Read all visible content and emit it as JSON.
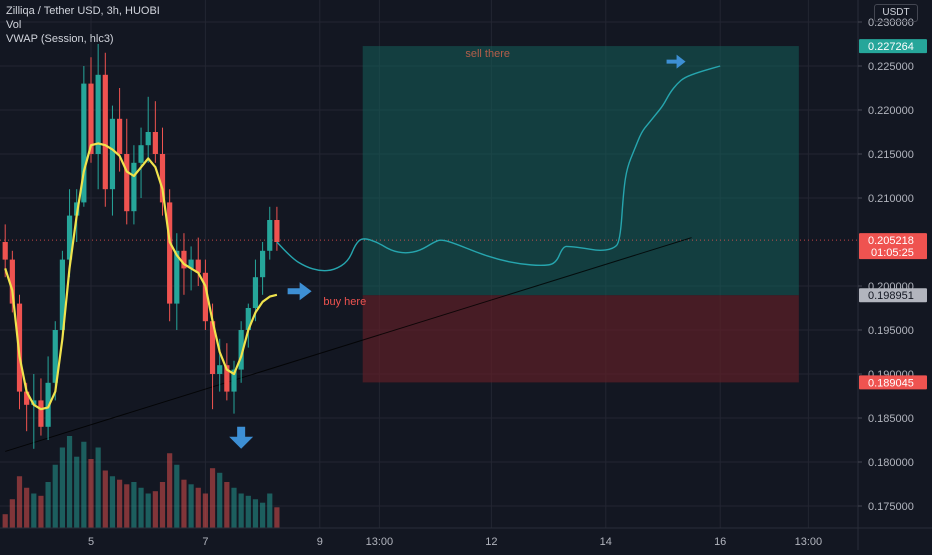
{
  "chart_data": {
    "type": "candlestick",
    "title": "Zilliqa / Tether USD, 3h, HUOBI",
    "indicators": [
      "Vol",
      "VWAP (Session, hlc3)"
    ],
    "currency": "USDT",
    "ylim": [
      0.1725,
      0.2325
    ],
    "y_ticks": [
      "0.230000",
      "0.225000",
      "0.220000",
      "0.215000",
      "0.210000",
      "0.200000",
      "0.195000",
      "0.190000",
      "0.185000",
      "0.180000",
      "0.175000"
    ],
    "x_ticks": [
      {
        "label": "5",
        "t": 0
      },
      {
        "label": "7",
        "t": 16
      },
      {
        "label": "9",
        "t": 32
      },
      {
        "label": "13:00",
        "t": 40.33
      },
      {
        "label": "12",
        "t": 56
      },
      {
        "label": "14",
        "t": 72
      },
      {
        "label": "16",
        "t": 88
      },
      {
        "label": "13:00",
        "t": 100.33
      }
    ],
    "candles": [
      {
        "t": -12,
        "o": 0.205,
        "h": 0.207,
        "l": 0.201,
        "c": 0.203
      },
      {
        "t": -11,
        "o": 0.203,
        "h": 0.204,
        "l": 0.197,
        "c": 0.198
      },
      {
        "t": -10,
        "o": 0.198,
        "h": 0.199,
        "l": 0.186,
        "c": 0.188
      },
      {
        "t": -9,
        "o": 0.188,
        "h": 0.189,
        "l": 0.1835,
        "c": 0.1865
      },
      {
        "t": -8,
        "o": 0.1865,
        "h": 0.19,
        "l": 0.1815,
        "c": 0.187
      },
      {
        "t": -7,
        "o": 0.187,
        "h": 0.1895,
        "l": 0.183,
        "c": 0.184
      },
      {
        "t": -6,
        "o": 0.184,
        "h": 0.192,
        "l": 0.1825,
        "c": 0.189
      },
      {
        "t": -5,
        "o": 0.189,
        "h": 0.196,
        "l": 0.187,
        "c": 0.195
      },
      {
        "t": -4,
        "o": 0.195,
        "h": 0.204,
        "l": 0.194,
        "c": 0.203
      },
      {
        "t": -3,
        "o": 0.203,
        "h": 0.211,
        "l": 0.201,
        "c": 0.208
      },
      {
        "t": -2,
        "o": 0.208,
        "h": 0.211,
        "l": 0.205,
        "c": 0.2095
      },
      {
        "t": -1,
        "o": 0.2095,
        "h": 0.225,
        "l": 0.209,
        "c": 0.223
      },
      {
        "t": 0,
        "o": 0.223,
        "h": 0.226,
        "l": 0.214,
        "c": 0.215
      },
      {
        "t": 1,
        "o": 0.215,
        "h": 0.2275,
        "l": 0.211,
        "c": 0.224
      },
      {
        "t": 2,
        "o": 0.224,
        "h": 0.2265,
        "l": 0.209,
        "c": 0.211
      },
      {
        "t": 3,
        "o": 0.211,
        "h": 0.2205,
        "l": 0.208,
        "c": 0.219
      },
      {
        "t": 4,
        "o": 0.219,
        "h": 0.2225,
        "l": 0.213,
        "c": 0.215
      },
      {
        "t": 5,
        "o": 0.215,
        "h": 0.219,
        "l": 0.207,
        "c": 0.2085
      },
      {
        "t": 6,
        "o": 0.2085,
        "h": 0.216,
        "l": 0.207,
        "c": 0.214
      },
      {
        "t": 7,
        "o": 0.214,
        "h": 0.218,
        "l": 0.21,
        "c": 0.216
      },
      {
        "t": 8,
        "o": 0.216,
        "h": 0.2215,
        "l": 0.214,
        "c": 0.2175
      },
      {
        "t": 9,
        "o": 0.2175,
        "h": 0.221,
        "l": 0.214,
        "c": 0.215
      },
      {
        "t": 10,
        "o": 0.215,
        "h": 0.218,
        "l": 0.208,
        "c": 0.2095
      },
      {
        "t": 11,
        "o": 0.2095,
        "h": 0.211,
        "l": 0.196,
        "c": 0.198
      },
      {
        "t": 12,
        "o": 0.198,
        "h": 0.206,
        "l": 0.195,
        "c": 0.204
      },
      {
        "t": 13,
        "o": 0.204,
        "h": 0.206,
        "l": 0.199,
        "c": 0.202
      },
      {
        "t": 14,
        "o": 0.202,
        "h": 0.2045,
        "l": 0.1995,
        "c": 0.203
      },
      {
        "t": 15,
        "o": 0.203,
        "h": 0.2055,
        "l": 0.2,
        "c": 0.2015
      },
      {
        "t": 16,
        "o": 0.2015,
        "h": 0.203,
        "l": 0.195,
        "c": 0.196
      },
      {
        "t": 17,
        "o": 0.196,
        "h": 0.198,
        "l": 0.186,
        "c": 0.19
      },
      {
        "t": 18,
        "o": 0.19,
        "h": 0.194,
        "l": 0.188,
        "c": 0.191
      },
      {
        "t": 19,
        "o": 0.191,
        "h": 0.1935,
        "l": 0.187,
        "c": 0.188
      },
      {
        "t": 20,
        "o": 0.188,
        "h": 0.1915,
        "l": 0.1855,
        "c": 0.1905
      },
      {
        "t": 21,
        "o": 0.1905,
        "h": 0.196,
        "l": 0.189,
        "c": 0.195
      },
      {
        "t": 22,
        "o": 0.195,
        "h": 0.198,
        "l": 0.193,
        "c": 0.1975
      },
      {
        "t": 23,
        "o": 0.1975,
        "h": 0.203,
        "l": 0.196,
        "c": 0.201
      },
      {
        "t": 24,
        "o": 0.201,
        "h": 0.205,
        "l": 0.199,
        "c": 0.204
      },
      {
        "t": 25,
        "o": 0.204,
        "h": 0.209,
        "l": 0.203,
        "c": 0.2075
      },
      {
        "t": 26,
        "o": 0.2075,
        "h": 0.209,
        "l": 0.204,
        "c": 0.205
      }
    ],
    "volume": {
      "note": "relative volume per candle, 0-1",
      "values": [
        0.12,
        0.25,
        0.45,
        0.35,
        0.3,
        0.28,
        0.4,
        0.55,
        0.7,
        0.8,
        0.62,
        0.75,
        0.6,
        0.7,
        0.5,
        0.45,
        0.42,
        0.38,
        0.4,
        0.35,
        0.3,
        0.32,
        0.4,
        0.65,
        0.55,
        0.42,
        0.38,
        0.35,
        0.3,
        0.52,
        0.48,
        0.4,
        0.35,
        0.3,
        0.28,
        0.25,
        0.22,
        0.3,
        0.18
      ]
    },
    "vwap": [
      {
        "t": -12,
        "v": 0.202
      },
      {
        "t": -11,
        "v": 0.1995
      },
      {
        "t": -10,
        "v": 0.192
      },
      {
        "t": -9,
        "v": 0.188
      },
      {
        "t": -8,
        "v": 0.1865
      },
      {
        "t": -7,
        "v": 0.186
      },
      {
        "t": -6,
        "v": 0.1862
      },
      {
        "t": -5,
        "v": 0.188
      },
      {
        "t": -4,
        "v": 0.194
      },
      {
        "t": -3,
        "v": 0.202
      },
      {
        "t": -2,
        "v": 0.208
      },
      {
        "t": -1,
        "v": 0.213
      },
      {
        "t": 0,
        "v": 0.216
      },
      {
        "t": 1,
        "v": 0.2162
      },
      {
        "t": 2,
        "v": 0.216
      },
      {
        "t": 3,
        "v": 0.2155
      },
      {
        "t": 4,
        "v": 0.2148
      },
      {
        "t": 5,
        "v": 0.213
      },
      {
        "t": 6,
        "v": 0.2125
      },
      {
        "t": 7,
        "v": 0.2135
      },
      {
        "t": 8,
        "v": 0.2145
      },
      {
        "t": 9,
        "v": 0.2135
      },
      {
        "t": 10,
        "v": 0.211
      },
      {
        "t": 11,
        "v": 0.205
      },
      {
        "t": 12,
        "v": 0.2035
      },
      {
        "t": 13,
        "v": 0.2025
      },
      {
        "t": 14,
        "v": 0.202
      },
      {
        "t": 15,
        "v": 0.2015
      },
      {
        "t": 16,
        "v": 0.2
      },
      {
        "t": 17,
        "v": 0.196
      },
      {
        "t": 18,
        "v": 0.1925
      },
      {
        "t": 19,
        "v": 0.1905
      },
      {
        "t": 20,
        "v": 0.19
      },
      {
        "t": 21,
        "v": 0.192
      },
      {
        "t": 22,
        "v": 0.195
      },
      {
        "t": 23,
        "v": 0.197
      },
      {
        "t": 24,
        "v": 0.1982
      },
      {
        "t": 25,
        "v": 0.1988
      },
      {
        "t": 26,
        "v": 0.199
      }
    ],
    "projection": [
      {
        "t": 26,
        "v": 0.205
      },
      {
        "t": 28,
        "v": 0.2032
      },
      {
        "t": 30,
        "v": 0.2022
      },
      {
        "t": 32,
        "v": 0.2017
      },
      {
        "t": 34,
        "v": 0.2018
      },
      {
        "t": 36,
        "v": 0.2028
      },
      {
        "t": 37,
        "v": 0.2048
      },
      {
        "t": 38,
        "v": 0.2055
      },
      {
        "t": 40,
        "v": 0.205
      },
      {
        "t": 42,
        "v": 0.204
      },
      {
        "t": 44,
        "v": 0.2037
      },
      {
        "t": 46,
        "v": 0.204
      },
      {
        "t": 48,
        "v": 0.205
      },
      {
        "t": 49,
        "v": 0.2053
      },
      {
        "t": 51,
        "v": 0.2048
      },
      {
        "t": 54,
        "v": 0.2038
      },
      {
        "t": 57,
        "v": 0.203
      },
      {
        "t": 60,
        "v": 0.2025
      },
      {
        "t": 63,
        "v": 0.2023
      },
      {
        "t": 65,
        "v": 0.2025
      },
      {
        "t": 66,
        "v": 0.2045
      },
      {
        "t": 67,
        "v": 0.2045
      },
      {
        "t": 69,
        "v": 0.2043
      },
      {
        "t": 71,
        "v": 0.204
      },
      {
        "t": 73,
        "v": 0.2042
      },
      {
        "t": 74,
        "v": 0.205
      },
      {
        "t": 74.5,
        "v": 0.211
      },
      {
        "t": 75,
        "v": 0.2135
      },
      {
        "t": 76,
        "v": 0.2155
      },
      {
        "t": 77,
        "v": 0.2175
      },
      {
        "t": 78,
        "v": 0.2185
      },
      {
        "t": 79,
        "v": 0.2195
      },
      {
        "t": 80,
        "v": 0.2205
      },
      {
        "t": 81,
        "v": 0.222
      },
      {
        "t": 82,
        "v": 0.223
      },
      {
        "t": 83,
        "v": 0.2237
      },
      {
        "t": 85,
        "v": 0.2243
      },
      {
        "t": 88,
        "v": 0.225
      }
    ],
    "trendline": {
      "t1": -12,
      "v1": 0.1812,
      "t2": 84,
      "v2": 0.2055
    },
    "position": {
      "t_start": 38,
      "t_end": 99,
      "entry": 0.198951,
      "target": 0.227264,
      "stop": 0.189045,
      "profit_color": "#145e59",
      "loss_color": "#5e2027"
    },
    "price_tags": [
      {
        "value": 0.227264,
        "label": "0.227264",
        "sub": "",
        "color": "#26a69a"
      },
      {
        "value": 0.205218,
        "label": "0.205218",
        "sub": "01:05:25",
        "color": "#ef5350"
      },
      {
        "value": 0.198951,
        "label": "0.198951",
        "sub": "",
        "color": "#b2b5be"
      },
      {
        "value": 0.189045,
        "label": "0.189045",
        "sub": "",
        "color": "#ef5350"
      }
    ],
    "annotations": [
      {
        "text": "sell there",
        "t": 38,
        "v": 0.2265,
        "color": "#b35e4a"
      },
      {
        "text": "buy here",
        "t": 32.5,
        "v": 0.1983,
        "color": "#ef5350"
      }
    ],
    "arrows": [
      {
        "dir": "right",
        "t": 27.5,
        "v": 0.1994
      },
      {
        "dir": "down",
        "t": 21,
        "v": 0.184
      },
      {
        "dir": "right",
        "t": 80.5,
        "v": 0.2255
      }
    ],
    "colors": {
      "background": "#131722",
      "grid": "#232632",
      "up": "#26a69a",
      "down": "#ef5350",
      "vwap": "#f0e34d",
      "projection": "#26a5ae",
      "arrow": "#3d8fd4",
      "axis_text": "#b2b5be"
    }
  }
}
